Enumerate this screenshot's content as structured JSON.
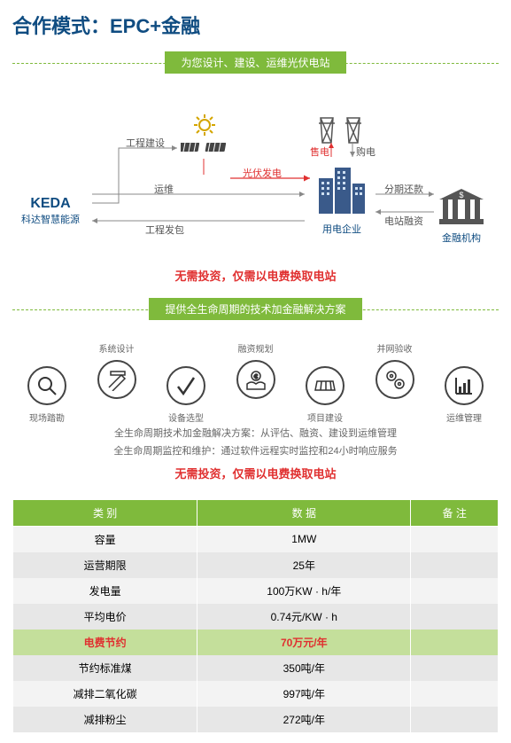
{
  "title": "合作模式：EPC+金融",
  "colors": {
    "brand_blue": "#0f4c81",
    "green": "#7fba3c",
    "red": "#e03030",
    "row_odd": "#f3f3f3",
    "row_even": "#e7e7e7",
    "row_hl": "#c4df9b"
  },
  "section1": {
    "header": "为您设计、建设、运维光伏电站",
    "nodes": {
      "keda": {
        "name": "KEDA",
        "sub": "科达智慧能源"
      },
      "consumer": "用电企业",
      "finance": "金融机构"
    },
    "edges": {
      "construction": "工程建设",
      "om": "运维",
      "contract": "工程发包",
      "pv_gen": "光伏发电",
      "sell": "售电",
      "buy": "购电",
      "repay": "分期还款",
      "station_finance": "电站融资"
    },
    "slogan": "无需投资，仅需以电费换取电站"
  },
  "section2": {
    "header": "提供全生命周期的技术加金融解决方案",
    "items": [
      {
        "label": "系统设计",
        "pos": "top",
        "icon": "pencil-ruler-icon"
      },
      {
        "label": "融资规划",
        "pos": "top",
        "icon": "hands-coin-icon"
      },
      {
        "label": "并网验收",
        "pos": "top",
        "icon": "gears-icon"
      },
      {
        "label": "现场踏勘",
        "pos": "bot",
        "icon": "magnifier-icon"
      },
      {
        "label": "设备选型",
        "pos": "bot",
        "icon": "check-icon"
      },
      {
        "label": "项目建设",
        "pos": "bot",
        "icon": "panel-icon"
      },
      {
        "label": "运维管理",
        "pos": "bot",
        "icon": "chart-icon"
      }
    ],
    "desc_line1": "全生命周期技术加金融解决方案：从评估、融资、建设到运维管理",
    "desc_line2": "全生命周期监控和维护：通过软件远程实时监控和24小时响应服务",
    "slogan": "无需投资，仅需以电费换取电站"
  },
  "table": {
    "columns": [
      "类  别",
      "数  据",
      "备  注"
    ],
    "rows": [
      {
        "c1": "容量",
        "c2": "1MW",
        "c3": "",
        "hl": false
      },
      {
        "c1": "运营期限",
        "c2": "25年",
        "c3": "",
        "hl": false
      },
      {
        "c1": "发电量",
        "c2": "100万KW · h/年",
        "c3": "",
        "hl": false
      },
      {
        "c1": "平均电价",
        "c2": "0.74元/KW · h",
        "c3": "",
        "hl": false
      },
      {
        "c1": "电费节约",
        "c2": "70万元/年",
        "c3": "",
        "hl": true
      },
      {
        "c1": "节约标准煤",
        "c2": "350吨/年",
        "c3": "",
        "hl": false
      },
      {
        "c1": "减排二氧化碳",
        "c2": "997吨/年",
        "c3": "",
        "hl": false
      },
      {
        "c1": "减排粉尘",
        "c2": "272吨/年",
        "c3": "",
        "hl": false
      }
    ]
  }
}
